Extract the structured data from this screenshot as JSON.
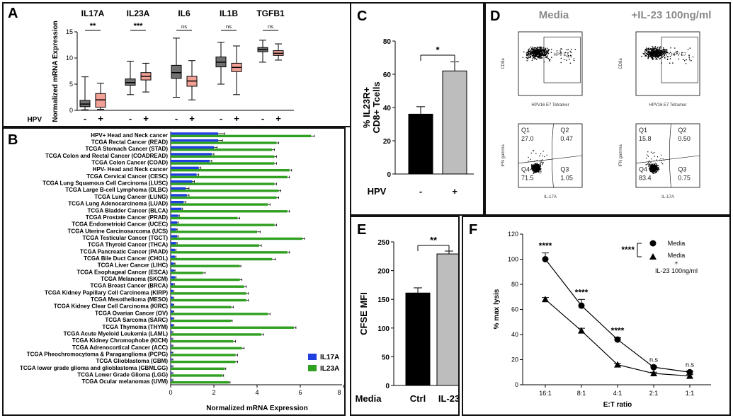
{
  "panel_letters": {
    "a": "A",
    "b": "B",
    "c": "C",
    "d": "D",
    "e": "E",
    "f": "F"
  },
  "panel_d": {
    "headers": [
      "Media",
      "+IL-23 100ng/ml"
    ],
    "top_row": {
      "gate_label": "HPV E7",
      "y_axis": "CD8a",
      "x_axis": "HPV16 E7 Tetramer"
    },
    "bottom_row": {
      "y_axis": "IFN gamma",
      "x_axis": "IL-17A"
    },
    "quadrants": [
      {
        "condition": "Media",
        "Q1": "27.0",
        "Q2": "0.47",
        "Q3": "1.05",
        "Q4": "71.5"
      },
      {
        "condition": "+IL-23 100ng/ml",
        "Q1": "15.8",
        "Q2": "0.50",
        "Q3": "0.75",
        "Q4": "83.4"
      }
    ],
    "quadrant_names": [
      "Q1",
      "Q2",
      "Q3",
      "Q4"
    ]
  },
  "chart_data": [
    {
      "panel": "A",
      "type": "box",
      "ylabel": "Normalized mRNA Expression",
      "ylim": [
        0,
        15
      ],
      "yticks": [
        0,
        5,
        10,
        15
      ],
      "group_axis_label": "HPV",
      "group_labels": [
        "-",
        "+"
      ],
      "colors": {
        "HPV-": "#707070",
        "HPV+": "#f2a196"
      },
      "genes": [
        {
          "name": "IL17A",
          "significance": "**",
          "boxes": [
            {
              "group": "-",
              "min": 0.1,
              "q1": 0.7,
              "median": 1.2,
              "q3": 1.9,
              "max": 6.4
            },
            {
              "group": "+",
              "min": 0.2,
              "q1": 0.6,
              "median": 2.0,
              "q3": 3.2,
              "max": 5.2
            }
          ]
        },
        {
          "name": "IL23A",
          "significance": "***",
          "boxes": [
            {
              "group": "-",
              "min": 3.0,
              "q1": 4.8,
              "median": 5.3,
              "q3": 6.0,
              "max": 9.4
            },
            {
              "group": "+",
              "min": 3.5,
              "q1": 5.8,
              "median": 6.5,
              "q3": 7.2,
              "max": 9.0
            }
          ]
        },
        {
          "name": "IL6",
          "significance": "ns",
          "boxes": [
            {
              "group": "-",
              "min": 2.5,
              "q1": 6.1,
              "median": 7.2,
              "q3": 8.6,
              "max": 13.8
            },
            {
              "group": "+",
              "min": 2.0,
              "q1": 4.6,
              "median": 5.6,
              "q3": 6.5,
              "max": 9.5
            }
          ]
        },
        {
          "name": "IL1B",
          "significance": "ns",
          "boxes": [
            {
              "group": "-",
              "min": 5.0,
              "q1": 8.3,
              "median": 9.2,
              "q3": 10.2,
              "max": 13.0
            },
            {
              "group": "+",
              "min": 3.0,
              "q1": 7.4,
              "median": 8.2,
              "q3": 9.0,
              "max": 12.3
            }
          ]
        },
        {
          "name": "TGFB1",
          "significance": "ns",
          "boxes": [
            {
              "group": "-",
              "min": 9.2,
              "q1": 11.2,
              "median": 11.6,
              "q3": 12.0,
              "max": 13.4
            },
            {
              "group": "+",
              "min": 9.6,
              "q1": 10.5,
              "median": 10.9,
              "q3": 11.4,
              "max": 12.7
            }
          ]
        }
      ]
    },
    {
      "panel": "B",
      "type": "bar",
      "orientation": "horizontal",
      "xlabel": "Normalized mRNA Expression",
      "xlim": [
        0,
        8
      ],
      "xticks": [
        0,
        2,
        4,
        6,
        8
      ],
      "legend": {
        "position": "bottom-right"
      },
      "categories": [
        "HPV+ Head and Neck cancer",
        "TCGA Rectal Cancer (READ)",
        "TCGA Stomach Cancer (STAD)",
        "TCGA Colon and Rectal Cancer (COADREAD)",
        "TCGA Colon Cancer (COAD)",
        "HPV- Head and Neck cancer",
        "TCGA Cervical Cancer (CESC)",
        "TCGA Lung Squamous Cell Carcinoma (LUSC)",
        "TCGA Large B-cell Lymphoma (DLBC)",
        "TCGA Lung Cancer (LUNG)",
        "TCGA Lung Adenocarcinoma (LUAD)",
        "TCGA Bladder Cancer (BLCA)",
        "TCGA Prostate Cancer (PRAD)",
        "TCGA Endometrioid Cancer (UCEC)",
        "TCGA Uterine Carcinosarcoma (UCS)",
        "TCGA Testicular Cancer (TGCT)",
        "TCGA Thyroid Cancer (THCA)",
        "TCGA Pancreatic Cancer (PAAD)",
        "TCGA Bile Duct Cancer (CHOL)",
        "TCGA Liver Cancer (LIHC)",
        "TCGA Esophageal Cancer (ESCA)",
        "TCGA Melanoma (SKCM)",
        "TCGA Breast Cancer (BRCA)",
        "TCGA Kidney Papillary Cell Carcinoma (KIRP)",
        "TCGA Mesothelioma (MESO)",
        "TCGA Kidney Clear Cell Carcinoma (KIRC)",
        "TCGA Ovarian Cancer (OV)",
        "TCGA Sarcoma (SARC)",
        "TCGA Thymoma (THYM)",
        "TCGA Acute Myeloid Leukemia (LAML)",
        "TCGA Kidney Chromophobe (KICH)",
        "TCGA Adrenocortical Cancer (ACC)",
        "TCGA Pheochromocytoma & Paraganglioma (PCPG)",
        "TCGA Glioblastoma (GBM)",
        "TCGA lower grade glioma and glioblastoma (GBMLGG)",
        "TCGA Lower Grade Glioma (LGG)",
        "TCGA Ocular melanomas (UVM)"
      ],
      "series": [
        {
          "name": "IL17A",
          "color": "#1f3fe0",
          "values": [
            2.2,
            2.2,
            2.0,
            1.9,
            1.8,
            1.3,
            1.2,
            1.0,
            0.7,
            0.75,
            0.6,
            0.5,
            0.35,
            0.3,
            0.25,
            0.3,
            0.25,
            0.2,
            0.2,
            0.15,
            0.15,
            0.2,
            0.12,
            0.1,
            0.1,
            0.1,
            0.1,
            0.1,
            0.1,
            0.05,
            0.05,
            0.05,
            0.05,
            0.05,
            0.05,
            0.05,
            0.05
          ],
          "errors": [
            0.3,
            0.2,
            0.15,
            0.1,
            0.1,
            0.1,
            0.1,
            0.1,
            0.15,
            0.1,
            0.1,
            0.05,
            0.05,
            0.05,
            0.05,
            0.05,
            0.05,
            0.05,
            0.05,
            0.05,
            0.05,
            0.05,
            0.05,
            0.05,
            0.05,
            0.05,
            0.05,
            0.05,
            0.05,
            0.05,
            0.05,
            0.05,
            0.05,
            0.05,
            0.05,
            0.05,
            0.05
          ]
        },
        {
          "name": "IL23A",
          "color": "#2fa020",
          "values": [
            6.5,
            4.9,
            4.7,
            4.8,
            4.8,
            5.5,
            5.4,
            4.8,
            5.0,
            4.9,
            4.5,
            5.4,
            3.1,
            4.8,
            4.0,
            6.1,
            4.1,
            5.4,
            4.7,
            3.2,
            1.5,
            3.2,
            3.4,
            3.5,
            3.5,
            2.8,
            4.5,
            2.8,
            5.7,
            4.2,
            2.9,
            3.3,
            3.0,
            3.0,
            2.5,
            2.4,
            2.7
          ],
          "errors": [
            0.15,
            0.1,
            0.1,
            0.1,
            0.1,
            0.1,
            0.1,
            0.1,
            0.1,
            0.1,
            0.1,
            0.1,
            0.1,
            0.1,
            0.15,
            0.1,
            0.1,
            0.1,
            0.15,
            0.05,
            0.1,
            0.1,
            0.1,
            0.1,
            0.1,
            0.1,
            0.1,
            0.05,
            0.1,
            0.1,
            0.1,
            0.1,
            0.1,
            0.1,
            0.05,
            0.05,
            0.05
          ]
        }
      ]
    },
    {
      "panel": "C",
      "type": "bar",
      "ylabel": "% IL23R+\nCD8+ Tcells",
      "ylim": [
        0,
        80
      ],
      "yticks": [
        0,
        20,
        40,
        60,
        80
      ],
      "group_axis_label": "HPV",
      "categories": [
        "-",
        "+"
      ],
      "values": [
        36,
        62
      ],
      "errors": [
        4.5,
        5.5
      ],
      "colors": [
        "#000000",
        "#bdbdbd"
      ],
      "significance": "*"
    },
    {
      "panel": "E",
      "type": "bar",
      "ylabel": "CFSE MFI",
      "ylim": [
        0,
        250
      ],
      "yticks": [
        0,
        50,
        100,
        150,
        200,
        250
      ],
      "group_axis_label": "Media",
      "categories": [
        "Ctrl",
        "IL-23"
      ],
      "values": [
        161,
        229
      ],
      "errors": [
        9,
        5
      ],
      "colors": [
        "#000000",
        "#bdbdbd"
      ],
      "significance": "**"
    },
    {
      "panel": "F",
      "type": "line",
      "xlabel": "E:T ratio",
      "ylabel": "% max lysis",
      "ylim": [
        0,
        120
      ],
      "yticks": [
        0,
        20,
        40,
        60,
        80,
        100,
        120
      ],
      "categories": [
        "16:1",
        "8:1",
        "4:1",
        "2:1",
        "1:1"
      ],
      "legend": {
        "position": "top-right",
        "bracket_label": "****"
      },
      "series": [
        {
          "name": "Media",
          "marker": "circle",
          "values": [
            100,
            63,
            36,
            14,
            10
          ],
          "errors": [
            5,
            5,
            1.5,
            1,
            1
          ]
        },
        {
          "name": "Media\n+\nIL-23 100ng/ml",
          "marker": "triangle",
          "values": [
            68,
            43,
            16,
            9,
            7
          ],
          "errors": [
            1.5,
            2,
            1,
            1,
            1
          ]
        }
      ],
      "annotations": [
        "****",
        "****",
        "****",
        "n.s",
        "n.s"
      ]
    }
  ]
}
